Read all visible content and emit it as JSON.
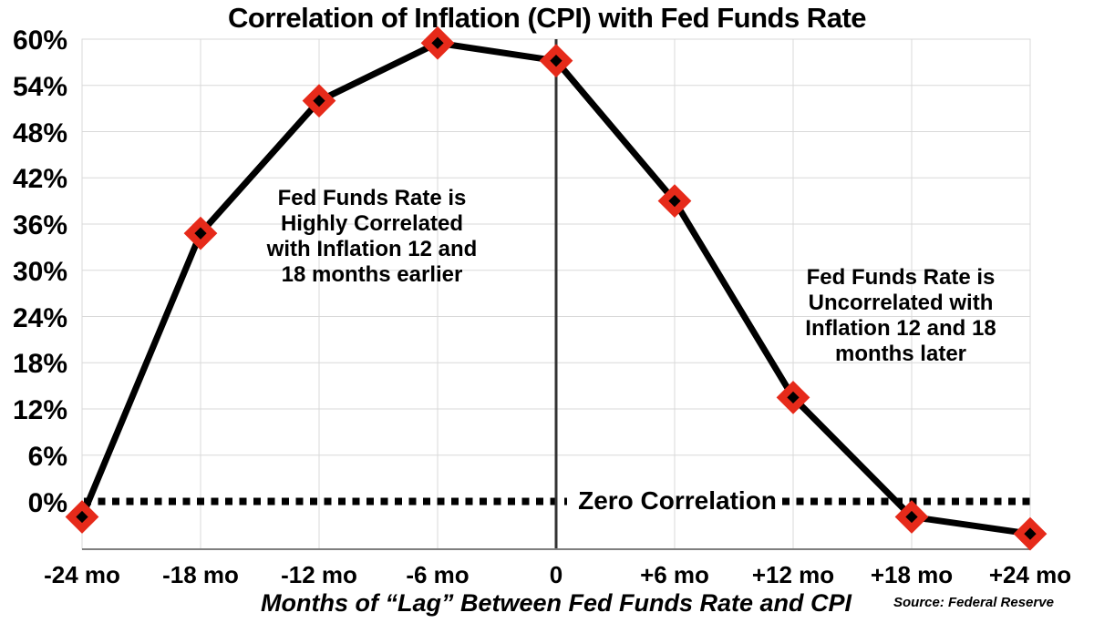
{
  "chart_data": {
    "type": "line",
    "title": "Correlation of Inflation (CPI) with Fed Funds Rate",
    "xlabel": "Months of “Lag” Between Fed Funds Rate and CPI",
    "source": "Source: Federal Reserve",
    "x_tick_labels": [
      "-24 mo",
      "-18 mo",
      "-12 mo",
      "-6 mo",
      "0",
      "+6 mo",
      "+12 mo",
      "+18 mo",
      "+24 mo"
    ],
    "x_ticks_months": [
      -24,
      -18,
      -12,
      -6,
      0,
      6,
      12,
      18,
      24
    ],
    "y_tick_labels": [
      "60%",
      "54%",
      "48%",
      "42%",
      "36%",
      "30%",
      "24%",
      "18%",
      "12%",
      "6%",
      "0%"
    ],
    "y_ticks_values": [
      60,
      54,
      48,
      42,
      36,
      30,
      24,
      18,
      12,
      6,
      0
    ],
    "xlim": [
      -24,
      24
    ],
    "ylim": [
      -6.2,
      60
    ],
    "grid": true,
    "series": [
      {
        "name": "Correlation of CPI with Fed Funds Rate",
        "x": [
          -24,
          -18,
          -12,
          -6,
          0,
          6,
          12,
          18,
          24
        ],
        "y": [
          -2,
          34.8,
          52,
          59.5,
          57.2,
          39,
          13.5,
          -2,
          -4.2
        ]
      }
    ],
    "zero_line": {
      "y": 0,
      "style": "dotted",
      "label": "Zero Correlation"
    },
    "vertical_line_x": 0,
    "annotations": [
      {
        "lines": [
          "Fed Funds Rate is",
          "Highly Correlated",
          "with Inflation 12 and",
          "18 months earlier"
        ]
      },
      {
        "lines": [
          "Fed Funds Rate is",
          "Uncorrelated with",
          "Inflation 12 and 18",
          "months later"
        ]
      }
    ],
    "colors": {
      "line": "#000000",
      "marker_fill": "#e62a1a",
      "marker_center": "#000000",
      "grid": "#d9d9d9",
      "axis": "#7f7f7f",
      "zero_vertical": "#333333",
      "dotted": "#000000"
    }
  }
}
